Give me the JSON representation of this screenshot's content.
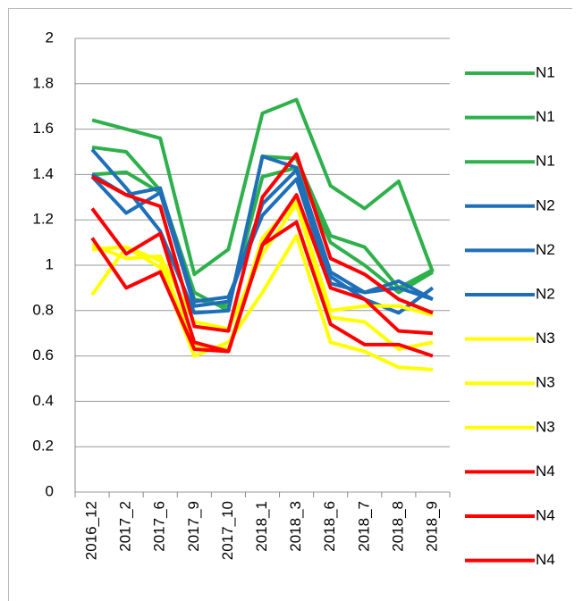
{
  "chart_data": {
    "type": "line",
    "categories": [
      "2016_12",
      "2017_2",
      "2017_6",
      "2017_9",
      "2017_10",
      "2018_1",
      "2018_3",
      "2018_6",
      "2018_7",
      "2018_8",
      "2018_9"
    ],
    "ylim": [
      0,
      2
    ],
    "yticks": [
      0,
      0.2,
      0.4,
      0.6,
      0.8,
      1,
      1.2,
      1.4,
      1.6,
      1.8,
      2
    ],
    "grid": true,
    "series": [
      {
        "name": "N1",
        "color": "#2eb04b",
        "values": [
          1.64,
          1.6,
          1.56,
          0.96,
          1.07,
          1.67,
          1.73,
          1.35,
          1.25,
          1.37,
          0.97
        ]
      },
      {
        "name": "N1",
        "color": "#2eb04b",
        "values": [
          1.52,
          1.5,
          1.33,
          0.88,
          0.8,
          1.48,
          1.47,
          1.13,
          1.08,
          0.9,
          0.98
        ]
      },
      {
        "name": "N1",
        "color": "#2eb04b",
        "values": [
          1.4,
          1.41,
          1.32,
          0.85,
          0.82,
          1.39,
          1.43,
          1.1,
          1.0,
          0.88,
          0.97
        ]
      },
      {
        "name": "N2",
        "color": "#1f6fb8",
        "values": [
          1.51,
          1.34,
          1.15,
          0.79,
          0.8,
          1.48,
          1.43,
          0.97,
          0.88,
          0.93,
          0.85
        ]
      },
      {
        "name": "N2",
        "color": "#1f6fb8",
        "values": [
          1.39,
          1.23,
          1.32,
          0.82,
          0.84,
          1.27,
          1.42,
          0.95,
          0.85,
          0.79,
          0.9
        ]
      },
      {
        "name": "N2",
        "color": "#1f6fb8",
        "values": [
          1.4,
          1.31,
          1.34,
          0.84,
          0.86,
          1.22,
          1.38,
          0.92,
          0.88,
          0.9,
          0.85
        ]
      },
      {
        "name": "N3",
        "color": "#ffff00",
        "values": [
          0.87,
          1.08,
          0.99,
          0.6,
          0.66,
          0.88,
          1.13,
          0.66,
          0.62,
          0.55,
          0.54
        ]
      },
      {
        "name": "N3",
        "color": "#ffff00",
        "values": [
          1.09,
          1.03,
          1.04,
          0.75,
          0.72,
          1.05,
          1.27,
          0.77,
          0.75,
          0.63,
          0.66
        ]
      },
      {
        "name": "N3",
        "color": "#ffff00",
        "values": [
          1.07,
          1.08,
          1.02,
          0.65,
          0.63,
          1.12,
          1.28,
          0.8,
          0.82,
          0.82,
          0.78
        ]
      },
      {
        "name": "N4",
        "color": "#ff0000",
        "values": [
          1.39,
          1.31,
          1.26,
          0.73,
          0.71,
          1.3,
          1.49,
          1.03,
          0.96,
          0.85,
          0.79
        ]
      },
      {
        "name": "N4",
        "color": "#ff0000",
        "values": [
          1.25,
          1.05,
          1.14,
          0.66,
          0.62,
          1.09,
          1.31,
          0.9,
          0.85,
          0.71,
          0.7
        ]
      },
      {
        "name": "N4",
        "color": "#ff0000",
        "values": [
          1.12,
          0.9,
          0.97,
          0.63,
          0.62,
          1.09,
          1.19,
          0.74,
          0.65,
          0.65,
          0.6
        ]
      }
    ]
  }
}
